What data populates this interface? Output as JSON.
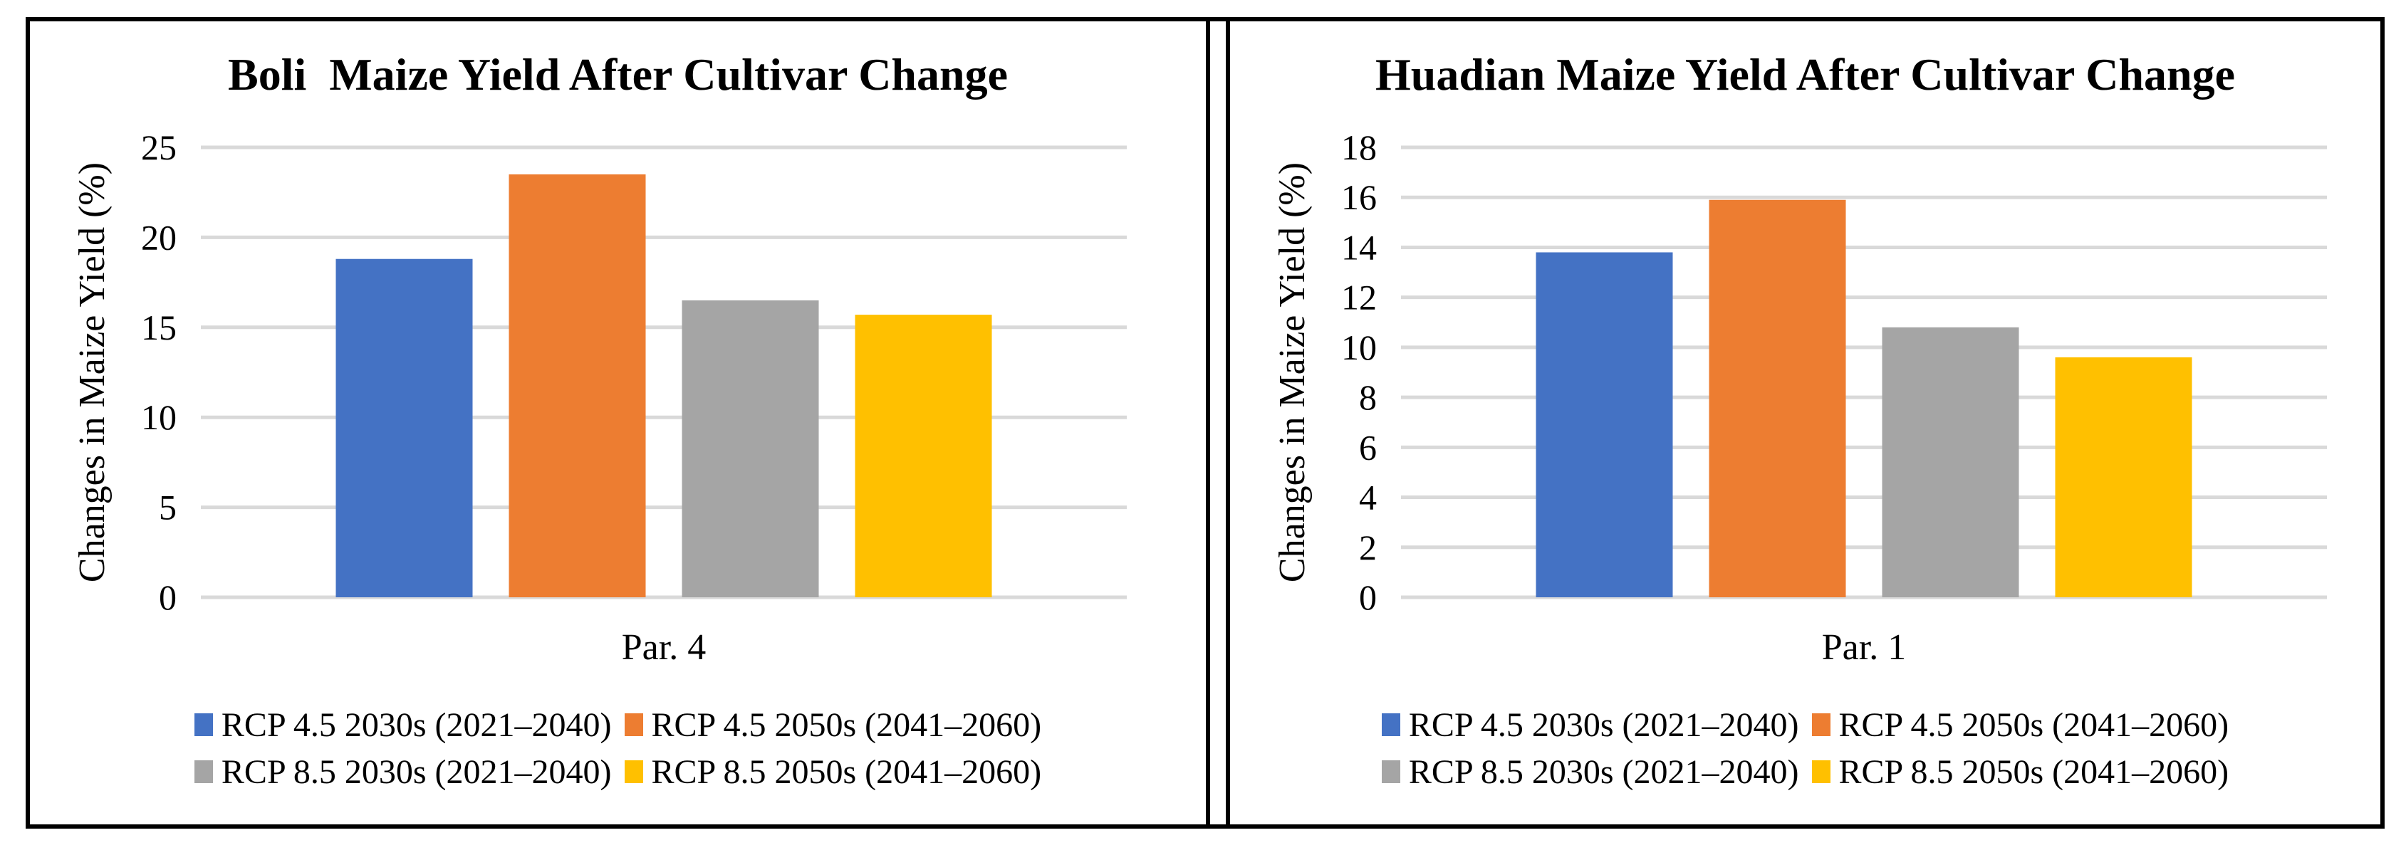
{
  "window": {
    "background": "#ffffff",
    "frame_border_color": "#000000"
  },
  "colors": {
    "series": [
      "#4472C4",
      "#ED7D31",
      "#A5A5A5",
      "#FFC000"
    ],
    "gridline": "#D9D9D9",
    "text": "#000000"
  },
  "chart_data": [
    {
      "type": "bar",
      "title": "Boli  Maize Yield After Cultivar Change",
      "ylabel": "Changes in Maize Yield (%)",
      "xlabel": "",
      "categories": [
        "Par. 4"
      ],
      "series": [
        {
          "name": "RCP 4.5 2030s (2021–2040)",
          "values": [
            18.8
          ]
        },
        {
          "name": "RCP 4.5 2050s (2041–2060)",
          "values": [
            23.5
          ]
        },
        {
          "name": "RCP 8.5 2030s (2021–2040)",
          "values": [
            16.5
          ]
        },
        {
          "name": "RCP 8.5 2050s (2041–2060)",
          "values": [
            15.7
          ]
        }
      ],
      "ylim": [
        0,
        25
      ],
      "ytick_step": 5,
      "yticks": [
        0,
        5,
        10,
        15,
        20,
        25
      ],
      "grid": "horizontal",
      "legend_position": "bottom"
    },
    {
      "type": "bar",
      "title": "Huadian Maize Yield After Cultivar Change",
      "ylabel": "Changes in Maize Yield (%)",
      "xlabel": "",
      "categories": [
        "Par. 1"
      ],
      "series": [
        {
          "name": "RCP 4.5 2030s (2021–2040)",
          "values": [
            13.8
          ]
        },
        {
          "name": "RCP 4.5 2050s (2041–2060)",
          "values": [
            15.9
          ]
        },
        {
          "name": "RCP 8.5 2030s (2021–2040)",
          "values": [
            10.8
          ]
        },
        {
          "name": "RCP 8.5 2050s (2041–2060)",
          "values": [
            9.6
          ]
        }
      ],
      "ylim": [
        0,
        18
      ],
      "ytick_step": 2,
      "yticks": [
        0,
        2,
        4,
        6,
        8,
        10,
        12,
        14,
        16,
        18
      ],
      "grid": "horizontal",
      "legend_position": "bottom"
    }
  ]
}
